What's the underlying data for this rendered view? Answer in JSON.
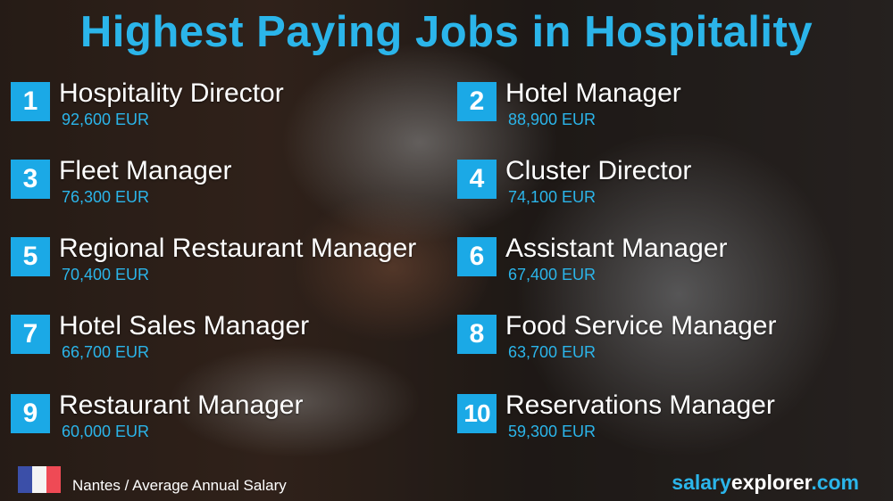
{
  "title": "Highest Paying Jobs in Hospitality",
  "jobs": [
    {
      "rank": "1",
      "title": "Hospitality Director",
      "salary": "92,600 EUR"
    },
    {
      "rank": "2",
      "title": "Hotel Manager",
      "salary": "88,900 EUR"
    },
    {
      "rank": "3",
      "title": "Fleet Manager",
      "salary": "76,300 EUR"
    },
    {
      "rank": "4",
      "title": "Cluster Director",
      "salary": "74,100 EUR"
    },
    {
      "rank": "5",
      "title": "Regional Restaurant Manager",
      "salary": "70,400 EUR"
    },
    {
      "rank": "6",
      "title": "Assistant Manager",
      "salary": "67,400 EUR"
    },
    {
      "rank": "7",
      "title": "Hotel Sales Manager",
      "salary": "66,700 EUR"
    },
    {
      "rank": "8",
      "title": "Food Service Manager",
      "salary": "63,700 EUR"
    },
    {
      "rank": "9",
      "title": "Restaurant Manager",
      "salary": "60,000 EUR"
    },
    {
      "rank": "10",
      "title": "Reservations Manager",
      "salary": "59,300 EUR"
    }
  ],
  "footer": {
    "location": "Nantes / Average Annual Salary",
    "flag": "france-flag",
    "brand_a": "salary",
    "brand_b": "explorer",
    "brand_c": ".com"
  },
  "colors": {
    "accent": "#2bb5ea",
    "rank_box": "#1ba9e6"
  }
}
